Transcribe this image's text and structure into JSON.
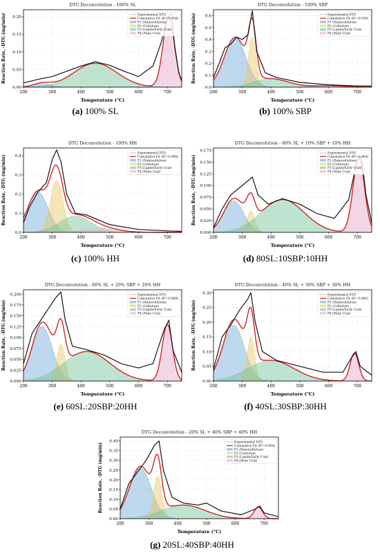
{
  "legend_labels": [
    "Experimental DTG",
    "Cumulative Fit",
    "P1 (Hemicellulose)",
    "P2 (Cellulose)",
    "P3 (Lignin/Early Coal)",
    "P4 (Main Coal)"
  ],
  "colors": {
    "experimental": "#111111",
    "fit": "#d62020",
    "p1": "#6fa8d6",
    "p2": "#e8c860",
    "p3": "#6fc49a",
    "p4": "#e7a6c8",
    "grid": "#dddddd"
  },
  "chart_data": [
    {
      "type": "area",
      "title": "DTG Deconvolution - 100% SL",
      "caption_letter": "(a)",
      "caption_text": " 100% SL",
      "fit_label": "Cumulative Fit (R²=0.938)",
      "xlabel": "Temperature (°C)",
      "ylabel": "Reaction Rate, -DTG (mg/min)",
      "xlim": [
        200,
        750
      ],
      "ylim": [
        0,
        0.22
      ],
      "xticks": [
        200,
        300,
        400,
        500,
        600,
        700
      ],
      "yticks": [
        0.0,
        0.05,
        0.1,
        0.15,
        0.2
      ],
      "legend_position": "top-right",
      "peaks": [
        {
          "name": "P1 (Hemicellulose)",
          "center": 265,
          "amp": 0.01,
          "width": 30
        },
        {
          "name": "P3 (Lignin/Early Coal)",
          "center": 450,
          "amp": 0.068,
          "width": 75
        },
        {
          "name": "P4 (Main Coal)",
          "center": 705,
          "amp": 0.2,
          "width": 20
        }
      ],
      "experimental": [
        [
          200,
          0.012
        ],
        [
          250,
          0.022
        ],
        [
          300,
          0.03
        ],
        [
          350,
          0.045
        ],
        [
          400,
          0.06
        ],
        [
          450,
          0.072
        ],
        [
          500,
          0.062
        ],
        [
          550,
          0.045
        ],
        [
          600,
          0.03
        ],
        [
          650,
          0.06
        ],
        [
          680,
          0.13
        ],
        [
          700,
          0.2
        ],
        [
          715,
          0.21
        ],
        [
          725,
          0.12
        ],
        [
          740,
          0.04
        ],
        [
          750,
          0.02
        ]
      ]
    },
    {
      "type": "area",
      "title": "DTG Deconvolution - 100% SBP",
      "caption_letter": "(b)",
      "caption_text": " 100% SBP",
      "fit_label": "Cumulative Fit (R²=0.939)",
      "xlabel": "Temperature (°C)",
      "ylabel": "Reaction Rate, -DTG (mg/min)",
      "xlim": [
        200,
        750
      ],
      "ylim": [
        0,
        0.65
      ],
      "xticks": [
        200,
        300,
        400,
        500,
        600,
        700
      ],
      "yticks": [
        0.0,
        0.1,
        0.2,
        0.3,
        0.4,
        0.5,
        0.6
      ],
      "legend_position": "top-right",
      "peaks": [
        {
          "name": "P1 (Hemicellulose)",
          "center": 275,
          "amp": 0.41,
          "width": 38
        },
        {
          "name": "P2 (Cellulose)",
          "center": 335,
          "amp": 0.42,
          "width": 13
        },
        {
          "name": "P3 (Lignin/Early Coal)",
          "center": 400,
          "amp": 0.07,
          "width": 60
        },
        {
          "name": "P4 (Main Coal)",
          "center": 600,
          "amp": 0.012,
          "width": 60
        }
      ],
      "experimental": [
        [
          200,
          0.08
        ],
        [
          220,
          0.2
        ],
        [
          240,
          0.33
        ],
        [
          260,
          0.36
        ],
        [
          280,
          0.42
        ],
        [
          300,
          0.4
        ],
        [
          320,
          0.44
        ],
        [
          335,
          0.64
        ],
        [
          350,
          0.3
        ],
        [
          380,
          0.12
        ],
        [
          420,
          0.08
        ],
        [
          500,
          0.04
        ],
        [
          600,
          0.02
        ],
        [
          700,
          0.01
        ],
        [
          750,
          0.01
        ]
      ]
    },
    {
      "type": "area",
      "title": "DTG Deconvolution - 100% HH",
      "caption_letter": "(c)",
      "caption_text": " 100% HH",
      "fit_label": "Cumulative Fit (R²=0.990)",
      "xlabel": "Temperature (°C)",
      "ylabel": "Reaction Rate, -DTG (mg/min)",
      "xlim": [
        200,
        750
      ],
      "ylim": [
        0,
        0.44
      ],
      "xticks": [
        200,
        300,
        400,
        500,
        600,
        700
      ],
      "yticks": [
        0.0,
        0.1,
        0.2,
        0.3,
        0.4
      ],
      "legend_position": "top-right",
      "peaks": [
        {
          "name": "P1 (Hemicellulose)",
          "center": 250,
          "amp": 0.21,
          "width": 35
        },
        {
          "name": "P2 (Cellulose)",
          "center": 315,
          "amp": 0.27,
          "width": 22
        },
        {
          "name": "P3 (Lignin/Early Coal)",
          "center": 380,
          "amp": 0.085,
          "width": 55
        },
        {
          "name": "P4 (Main Coal)",
          "center": 470,
          "amp": 0.02,
          "width": 60
        }
      ],
      "experimental": [
        [
          200,
          0.05
        ],
        [
          220,
          0.13
        ],
        [
          250,
          0.21
        ],
        [
          280,
          0.26
        ],
        [
          300,
          0.38
        ],
        [
          315,
          0.43
        ],
        [
          330,
          0.37
        ],
        [
          350,
          0.2
        ],
        [
          380,
          0.1
        ],
        [
          420,
          0.09
        ],
        [
          500,
          0.04
        ],
        [
          600,
          0.015
        ],
        [
          640,
          0.012
        ],
        [
          700,
          0.008
        ],
        [
          750,
          0.005
        ]
      ]
    },
    {
      "type": "area",
      "title": "DTG Deconvolution - 80% SL + 10% SBP + 10% HH",
      "caption_letter": "(d)",
      "caption_text": " 80SL:10SBP:10HH",
      "fit_label": "Cumulative Fit (R²=0.964)",
      "xlabel": "Temperature (°C)",
      "ylabel": "Reaction Rate, -DTG (mg/min)",
      "xlim": [
        200,
        750
      ],
      "ylim": [
        0,
        0.18
      ],
      "xticks": [
        200,
        300,
        400,
        500,
        600,
        700
      ],
      "yticks": [
        0.0,
        0.025,
        0.05,
        0.075,
        0.1,
        0.125,
        0.15,
        0.175
      ],
      "legend_position": "top-right",
      "peaks": [
        {
          "name": "P1 (Hemicellulose)",
          "center": 270,
          "amp": 0.067,
          "width": 35
        },
        {
          "name": "P2 (Cellulose)",
          "center": 330,
          "amp": 0.045,
          "width": 14
        },
        {
          "name": "P3 (Lignin/Early Coal)",
          "center": 440,
          "amp": 0.07,
          "width": 75
        },
        {
          "name": "P4 (Main Coal)",
          "center": 705,
          "amp": 0.16,
          "width": 20
        }
      ],
      "experimental": [
        [
          200,
          0.01
        ],
        [
          230,
          0.05
        ],
        [
          260,
          0.08
        ],
        [
          290,
          0.095
        ],
        [
          320,
          0.11
        ],
        [
          335,
          0.118
        ],
        [
          355,
          0.08
        ],
        [
          390,
          0.06
        ],
        [
          440,
          0.072
        ],
        [
          500,
          0.06
        ],
        [
          560,
          0.04
        ],
        [
          620,
          0.03
        ],
        [
          670,
          0.07
        ],
        [
          700,
          0.155
        ],
        [
          715,
          0.16
        ],
        [
          730,
          0.08
        ],
        [
          750,
          0.02
        ]
      ]
    },
    {
      "type": "area",
      "title": "DTG Deconvolution - 60% SL + 20% SBP + 20% HH",
      "caption_letter": "(e)",
      "caption_text": " 60SL:20SBP:20HH",
      "fit_label": "Cumulative Fit (R²=0.969)",
      "xlabel": "Temperature (°C)",
      "ylabel": "Reaction Rate, -DTG (mg/min)",
      "xlim": [
        200,
        750
      ],
      "ylim": [
        0,
        0.21
      ],
      "xticks": [
        200,
        300,
        400,
        500,
        600,
        700
      ],
      "yticks": [
        0.0,
        0.025,
        0.05,
        0.075,
        0.1,
        0.125,
        0.15,
        0.175,
        0.2
      ],
      "legend_position": "top-right",
      "peaks": [
        {
          "name": "P1 (Hemicellulose)",
          "center": 265,
          "amp": 0.125,
          "width": 35
        },
        {
          "name": "P2 (Cellulose)",
          "center": 330,
          "amp": 0.085,
          "width": 14
        },
        {
          "name": "P3 (Lignin/Early Coal)",
          "center": 420,
          "amp": 0.068,
          "width": 80
        },
        {
          "name": "P4 (Main Coal)",
          "center": 700,
          "amp": 0.13,
          "width": 18
        }
      ],
      "experimental": [
        [
          200,
          0.04
        ],
        [
          230,
          0.11
        ],
        [
          260,
          0.14
        ],
        [
          290,
          0.17
        ],
        [
          310,
          0.19
        ],
        [
          330,
          0.205
        ],
        [
          345,
          0.14
        ],
        [
          370,
          0.08
        ],
        [
          420,
          0.072
        ],
        [
          480,
          0.06
        ],
        [
          540,
          0.04
        ],
        [
          600,
          0.03
        ],
        [
          650,
          0.04
        ],
        [
          690,
          0.12
        ],
        [
          705,
          0.14
        ],
        [
          720,
          0.07
        ],
        [
          750,
          0.02
        ]
      ]
    },
    {
      "type": "area",
      "title": "DTG Deconvolution - 40% SL + 30% SBP + 30% HH",
      "caption_letter": "(f)",
      "caption_text": " 40SL:30SBP:30HH",
      "fit_label": "Cumulative Fit (R²=0.985)",
      "xlabel": "Temperature (°C)",
      "ylabel": "Reaction Rate, -DTG (mg/min)",
      "xlim": [
        200,
        750
      ],
      "ylim": [
        0,
        0.31
      ],
      "xticks": [
        200,
        300,
        400,
        500,
        600,
        700
      ],
      "yticks": [
        0.0,
        0.05,
        0.1,
        0.15,
        0.2,
        0.25,
        0.3
      ],
      "legend_position": "top-right",
      "peaks": [
        {
          "name": "P1 (Hemicellulose)",
          "center": 270,
          "amp": 0.19,
          "width": 37
        },
        {
          "name": "P2 (Cellulose)",
          "center": 330,
          "amp": 0.15,
          "width": 13
        },
        {
          "name": "P3 (Lignin/Early Coal)",
          "center": 400,
          "amp": 0.07,
          "width": 80
        },
        {
          "name": "P4 (Main Coal)",
          "center": 690,
          "amp": 0.095,
          "width": 15
        }
      ],
      "experimental": [
        [
          200,
          0.04
        ],
        [
          230,
          0.15
        ],
        [
          260,
          0.19
        ],
        [
          290,
          0.24
        ],
        [
          320,
          0.28
        ],
        [
          330,
          0.3
        ],
        [
          345,
          0.2
        ],
        [
          370,
          0.1
        ],
        [
          420,
          0.07
        ],
        [
          500,
          0.05
        ],
        [
          580,
          0.03
        ],
        [
          650,
          0.03
        ],
        [
          680,
          0.08
        ],
        [
          695,
          0.1
        ],
        [
          710,
          0.05
        ],
        [
          750,
          0.02
        ]
      ]
    },
    {
      "type": "area",
      "title": "DTG Deconvolution - 20% SL + 40% SBP + 40% HH",
      "caption_letter": "(g)",
      "caption_text": " 20SL:40SBP:40HH",
      "fit_label": "Cumulative Fit (R²=0.994)",
      "xlabel": "Temperature (°C)",
      "ylabel": "Reaction Rate, -DTG (mg/min)",
      "xlim": [
        200,
        750
      ],
      "ylim": [
        0,
        0.42
      ],
      "xticks": [
        200,
        300,
        400,
        500,
        600,
        700
      ],
      "yticks": [
        0.0,
        0.05,
        0.1,
        0.15,
        0.2,
        0.25,
        0.3,
        0.35,
        0.4
      ],
      "legend_position": "top-right",
      "peaks": [
        {
          "name": "P1 (Hemicellulose)",
          "center": 270,
          "amp": 0.26,
          "width": 38
        },
        {
          "name": "P2 (Cellulose)",
          "center": 330,
          "amp": 0.22,
          "width": 14
        },
        {
          "name": "P3 (Lignin/Early Coal)",
          "center": 420,
          "amp": 0.07,
          "width": 75
        },
        {
          "name": "P4 (Main Coal)",
          "center": 680,
          "amp": 0.06,
          "width": 15
        }
      ],
      "experimental": [
        [
          200,
          0.05
        ],
        [
          230,
          0.18
        ],
        [
          260,
          0.24
        ],
        [
          290,
          0.3
        ],
        [
          320,
          0.38
        ],
        [
          335,
          0.4
        ],
        [
          350,
          0.25
        ],
        [
          380,
          0.11
        ],
        [
          420,
          0.08
        ],
        [
          470,
          0.07
        ],
        [
          500,
          0.08
        ],
        [
          550,
          0.04
        ],
        [
          620,
          0.02
        ],
        [
          670,
          0.05
        ],
        [
          685,
          0.065
        ],
        [
          700,
          0.03
        ],
        [
          750,
          0.01
        ]
      ]
    }
  ]
}
